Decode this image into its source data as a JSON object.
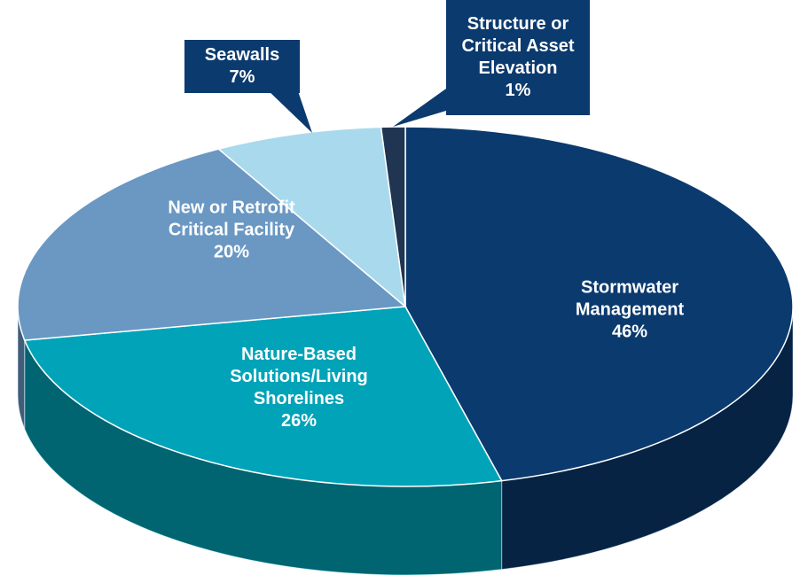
{
  "chart_data": {
    "type": "pie",
    "categories": [
      "Stormwater Management",
      "Nature-Based Solutions/Living Shorelines",
      "New or Retrofit Critical Facility",
      "Seawalls",
      "Structure or Critical Asset Elevation"
    ],
    "values": [
      46,
      26,
      20,
      7,
      1
    ],
    "value_labels": [
      "46%",
      "26%",
      "20%",
      "7%",
      "1%"
    ],
    "colors": [
      "#0b3a6e",
      "#00a3b8",
      "#6a98c3",
      "#a9d9ec",
      "#1f3552"
    ]
  }
}
